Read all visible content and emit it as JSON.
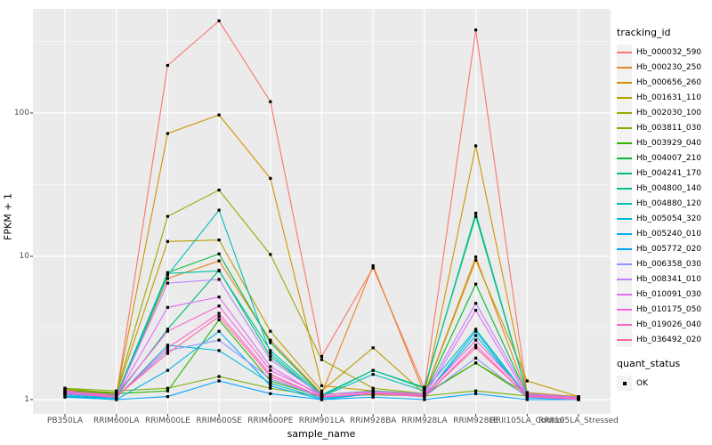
{
  "chart_data": {
    "type": "line",
    "title": "",
    "xlabel": "sample_name",
    "ylabel": "FPKM + 1",
    "y_scale": "log10",
    "ylim": [
      0.8,
      530
    ],
    "grid": true,
    "legend_position": "right",
    "legend_title": "tracking_id",
    "point_legend": {
      "title": "quant_status",
      "label": "OK",
      "shape": "filled-square"
    },
    "y_ticks": [
      100,
      10,
      1
    ],
    "y_tick_labels": [
      "100",
      "10",
      "1"
    ],
    "y_minor_gridlines": [
      3.1623,
      31.623,
      316.23
    ],
    "x_categories": [
      "PB350LA",
      "RRIM600LA",
      "RRIM600LE",
      "RRIM600SE",
      "RRIM600PE",
      "RRIM901LA",
      "RRIM928BA",
      "RRIM928LA",
      "RRIM928LE",
      "RRII105LA_Control",
      "RRII105LA_Stressed"
    ],
    "colors": {
      "panel_background": "#EBEBEB",
      "gridline": "#FFFFFF",
      "point": "#000000",
      "tick_text": "#4D4D4D",
      "tick_mark": "#333333"
    },
    "series": [
      {
        "name": "Hb_000032_590",
        "color": "#F8766D",
        "values": [
          1.15,
          1.05,
          215,
          440,
          120,
          2.0,
          8.3,
          1.2,
          380,
          1.1,
          1.02
        ]
      },
      {
        "name": "Hb_000230_250",
        "color": "#E88526",
        "values": [
          1.12,
          1.03,
          7.0,
          9.3,
          2.6,
          1.1,
          8.6,
          1.1,
          9.9,
          1.08,
          1.02
        ]
      },
      {
        "name": "Hb_000656_260",
        "color": "#D39200",
        "values": [
          1.18,
          1.08,
          72,
          97,
          35,
          1.25,
          1.15,
          1.08,
          59,
          1.12,
          1.05
        ]
      },
      {
        "name": "Hb_001631_110",
        "color": "#BB9D00",
        "values": [
          1.2,
          1.1,
          12.7,
          13.0,
          3.0,
          1.15,
          2.3,
          1.1,
          9.4,
          1.35,
          1.05
        ]
      },
      {
        "name": "Hb_002030_100",
        "color": "#9CA700",
        "values": [
          1.17,
          1.12,
          19,
          29,
          10.3,
          1.9,
          1.2,
          1.1,
          1.8,
          1.1,
          1.04
        ]
      },
      {
        "name": "Hb_003811_030",
        "color": "#75AF00",
        "values": [
          1.2,
          1.15,
          1.2,
          1.45,
          1.2,
          1.05,
          1.08,
          1.06,
          1.15,
          1.06,
          1.02
        ]
      },
      {
        "name": "Hb_003929_040",
        "color": "#2CB600",
        "values": [
          1.16,
          1.1,
          1.15,
          3.6,
          1.35,
          1.05,
          1.1,
          1.08,
          1.8,
          1.06,
          1.02
        ]
      },
      {
        "name": "Hb_004007_210",
        "color": "#00BB38",
        "values": [
          1.12,
          1.06,
          7.7,
          10.4,
          2.5,
          1.08,
          1.15,
          1.1,
          6.4,
          1.07,
          1.02
        ]
      },
      {
        "name": "Hb_004241_170",
        "color": "#00BE70",
        "values": [
          1.1,
          1.05,
          3.1,
          8.0,
          2.0,
          1.06,
          1.6,
          1.2,
          20,
          1.1,
          1.03
        ]
      },
      {
        "name": "Hb_004800_140",
        "color": "#00C096",
        "values": [
          1.1,
          1.07,
          7.6,
          7.9,
          2.2,
          1.08,
          1.6,
          1.22,
          19,
          1.1,
          1.04
        ]
      },
      {
        "name": "Hb_004880_120",
        "color": "#00BFBA",
        "values": [
          1.06,
          1.02,
          7.4,
          21,
          2.1,
          1.05,
          1.5,
          1.15,
          3.1,
          1.06,
          1.02
        ]
      },
      {
        "name": "Hb_005054_320",
        "color": "#00BBDA",
        "values": [
          1.08,
          1.03,
          2.4,
          2.2,
          1.3,
          1.02,
          1.1,
          1.06,
          2.8,
          1.05,
          1.02
        ]
      },
      {
        "name": "Hb_005240_010",
        "color": "#00B3F2",
        "values": [
          1.05,
          1.0,
          1.6,
          3.0,
          1.25,
          1.0,
          1.1,
          1.05,
          3.0,
          1.03,
          1.0
        ]
      },
      {
        "name": "Hb_005772_020",
        "color": "#00A5FF",
        "values": [
          1.04,
          1.0,
          1.05,
          1.35,
          1.1,
          1.0,
          1.04,
          1.0,
          1.1,
          1.0,
          1.0
        ]
      },
      {
        "name": "Hb_006358_030",
        "color": "#8894FF",
        "values": [
          1.1,
          1.04,
          2.2,
          2.6,
          1.4,
          1.04,
          1.1,
          1.05,
          1.95,
          1.04,
          1.0
        ]
      },
      {
        "name": "Hb_008341_010",
        "color": "#BC81FF",
        "values": [
          1.12,
          1.05,
          6.5,
          6.9,
          1.9,
          1.08,
          1.14,
          1.1,
          4.7,
          1.1,
          1.04
        ]
      },
      {
        "name": "Hb_010091_030",
        "color": "#E26EF7",
        "values": [
          1.1,
          1.05,
          4.4,
          5.2,
          1.7,
          1.05,
          1.1,
          1.06,
          4.2,
          1.06,
          1.02
        ]
      },
      {
        "name": "Hb_010175_050",
        "color": "#F863E0",
        "values": [
          1.14,
          1.08,
          3.0,
          4.5,
          1.6,
          1.08,
          1.12,
          1.08,
          2.6,
          1.08,
          1.03
        ]
      },
      {
        "name": "Hb_019026_040",
        "color": "#FF61C7",
        "values": [
          1.1,
          1.04,
          2.3,
          4.0,
          1.5,
          1.04,
          1.1,
          1.05,
          2.4,
          1.05,
          1.01
        ]
      },
      {
        "name": "Hb_036492_020",
        "color": "#FF68A8",
        "values": [
          1.16,
          1.05,
          2.1,
          3.8,
          1.45,
          1.05,
          1.1,
          1.06,
          2.3,
          1.06,
          1.02
        ]
      }
    ]
  }
}
